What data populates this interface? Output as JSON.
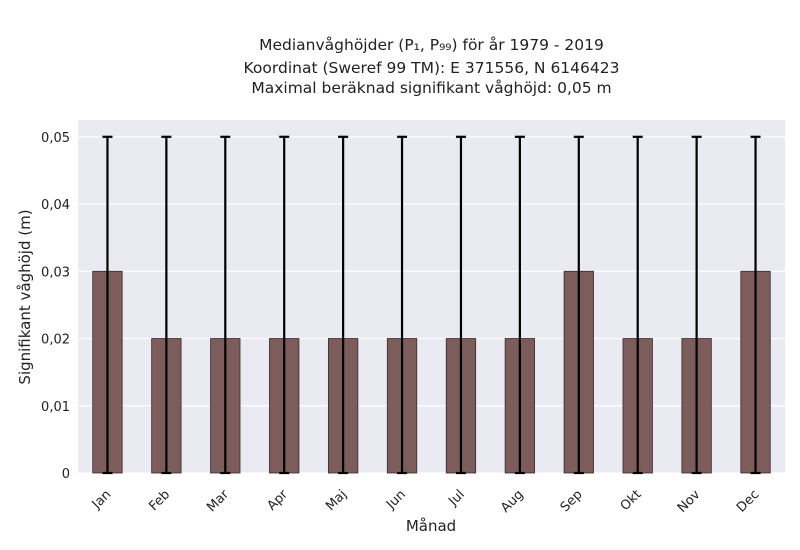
{
  "chart_data": {
    "type": "bar",
    "title_lines": [
      "Medianvåghöjder (P₁, P₉₉) för år 1979 - 2019",
      "Koordinat (Sweref 99 TM): E 371556, N 6146423",
      "Maximal beräknad signifikant våghöjd: 0,05 m"
    ],
    "xlabel": "Månad",
    "ylabel": "Signifikant våghöjd (m)",
    "categories": [
      "Jan",
      "Feb",
      "Mar",
      "Apr",
      "Maj",
      "Jun",
      "Jul",
      "Aug",
      "Sep",
      "Okt",
      "Nov",
      "Dec"
    ],
    "values": [
      0.03,
      0.02,
      0.02,
      0.02,
      0.02,
      0.02,
      0.02,
      0.02,
      0.03,
      0.02,
      0.02,
      0.03
    ],
    "error_low": [
      0,
      0,
      0,
      0,
      0,
      0,
      0,
      0,
      0,
      0,
      0,
      0
    ],
    "error_high": [
      0.05,
      0.05,
      0.05,
      0.05,
      0.05,
      0.05,
      0.05,
      0.05,
      0.05,
      0.05,
      0.05,
      0.05
    ],
    "ylim": [
      0,
      0.0525
    ],
    "yticks": [
      0,
      0.01,
      0.02,
      0.03,
      0.04,
      0.05
    ],
    "ytick_labels": [
      "0",
      "0,01",
      "0,02",
      "0,03",
      "0,04",
      "0,05"
    ],
    "grid": true,
    "colors": {
      "bar": "#7d5c5c",
      "bar_edge": "#3a2a2a",
      "error_bar": "#000000",
      "plot_bg": "#eaeaf2",
      "grid": "#ffffff"
    }
  }
}
